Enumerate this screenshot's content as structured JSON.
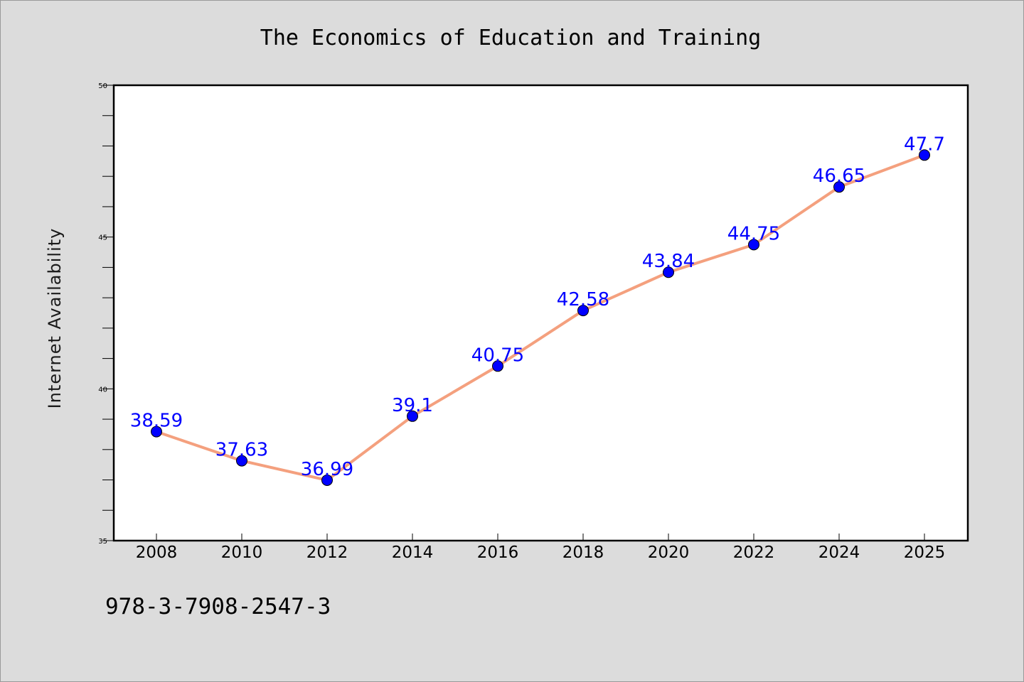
{
  "chart_data": {
    "type": "line",
    "title": "The Economics of Education and Training",
    "xlabel": "",
    "ylabel": "Internet Availability",
    "categories": [
      "2008",
      "2010",
      "2012",
      "2014",
      "2016",
      "2018",
      "2020",
      "2022",
      "2024",
      "2025"
    ],
    "series": [
      {
        "values": [
          38.59,
          37.63,
          36.99,
          39.1,
          40.75,
          42.58,
          43.84,
          44.75,
          46.65,
          47.7
        ],
        "labels": [
          "38.59",
          "37.63",
          "36.99",
          "39.1",
          "40.75",
          "42.58",
          "43.84",
          "44.75",
          "46.65",
          "47.7"
        ],
        "line_color": "#f4a07e",
        "marker_color": "#0000ff"
      }
    ],
    "ylim": [
      35,
      50
    ],
    "yticks": [
      "35",
      "40",
      "45",
      "50"
    ],
    "grid": false,
    "legend": "none"
  },
  "footer": {
    "isbn": "978-3-7908-2547-3"
  },
  "colors": {
    "background": "#dcdcdc",
    "plot_background": "#ffffff",
    "label_color": "#0000ff"
  }
}
